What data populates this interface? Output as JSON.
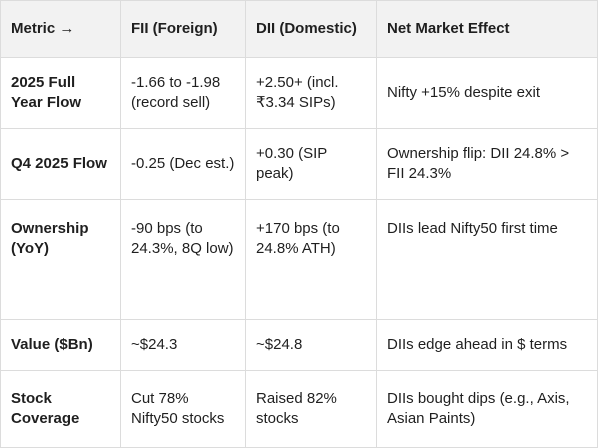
{
  "table": {
    "headers": [
      "Metric →",
      "FII (Foreign)",
      "DII (Domestic)",
      "Net Market Effect"
    ],
    "rows": [
      {
        "metric": "2025 Full Year Flow",
        "fii": "-1.66 to -1.98 (record sell)",
        "dii": "+2.50+ (incl. ₹3.34 SIPs)",
        "effect": "Nifty +15% despite exit"
      },
      {
        "metric": "Q4 2025 Flow",
        "fii": "-0.25 (Dec est.)",
        "dii": "+0.30 (SIP peak)",
        "effect": "Ownership flip: DII 24.8% > FII 24.3%"
      },
      {
        "metric": "Ownership (YoY)",
        "fii": "-90 bps (to 24.3%, 8Q low)",
        "dii": "+170 bps (to 24.8% ATH)",
        "effect": "DIIs lead Nifty50 first time"
      },
      {
        "metric": "Value ($Bn)",
        "fii": "~$24.3",
        "dii": "~$24.8",
        "effect": "DIIs edge ahead in $ terms"
      },
      {
        "metric": "Stock Coverage",
        "fii": "Cut 78% Nifty50 stocks",
        "dii": "Raised 82% stocks",
        "effect": "DIIs bought dips (e.g., Axis, Asian Paints)"
      }
    ]
  }
}
